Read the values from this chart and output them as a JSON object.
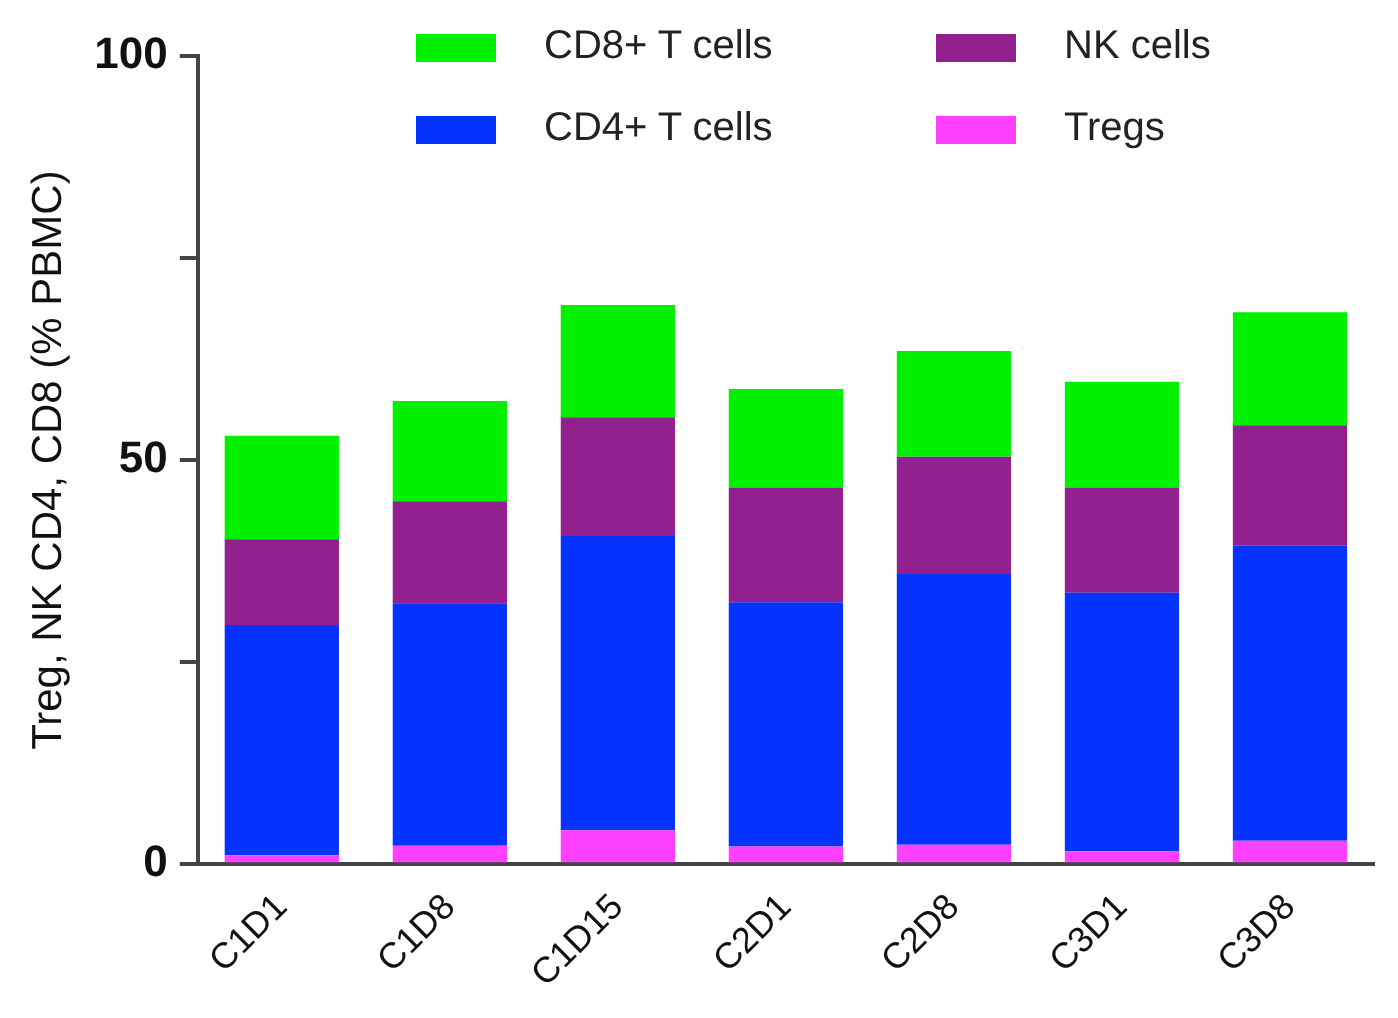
{
  "chart_data": {
    "type": "bar",
    "stacked": true,
    "ylabel": "Treg, NK CD4, CD8 (% PBMC)",
    "categories": [
      "C1D1",
      "C1D8",
      "C1D15",
      "C2D1",
      "C2D8",
      "C3D1",
      "C3D8"
    ],
    "series": [
      {
        "name": "Tregs",
        "color": "#ff40ff",
        "values": [
          1.1,
          2.3,
          4.2,
          2.2,
          2.4,
          1.6,
          2.9
        ]
      },
      {
        "name": "CD4+ T cells",
        "color": "#0432ff",
        "values": [
          28.5,
          30.0,
          36.4,
          30.2,
          33.5,
          32.0,
          36.5
        ]
      },
      {
        "name": "NK cells",
        "color": "#92208f",
        "values": [
          10.6,
          12.6,
          14.7,
          14.2,
          14.5,
          13.0,
          14.9
        ]
      },
      {
        "name": "CD8+ T cells",
        "color": "#00f000",
        "values": [
          12.8,
          12.4,
          13.9,
          12.2,
          13.1,
          13.1,
          14.0
        ]
      }
    ],
    "ylim": [
      0,
      100
    ],
    "yticks": [
      0,
      {
        "value": 25,
        "label": null
      },
      50,
      {
        "value": 75,
        "label": null
      },
      100
    ],
    "grid": false,
    "legend": "top"
  }
}
